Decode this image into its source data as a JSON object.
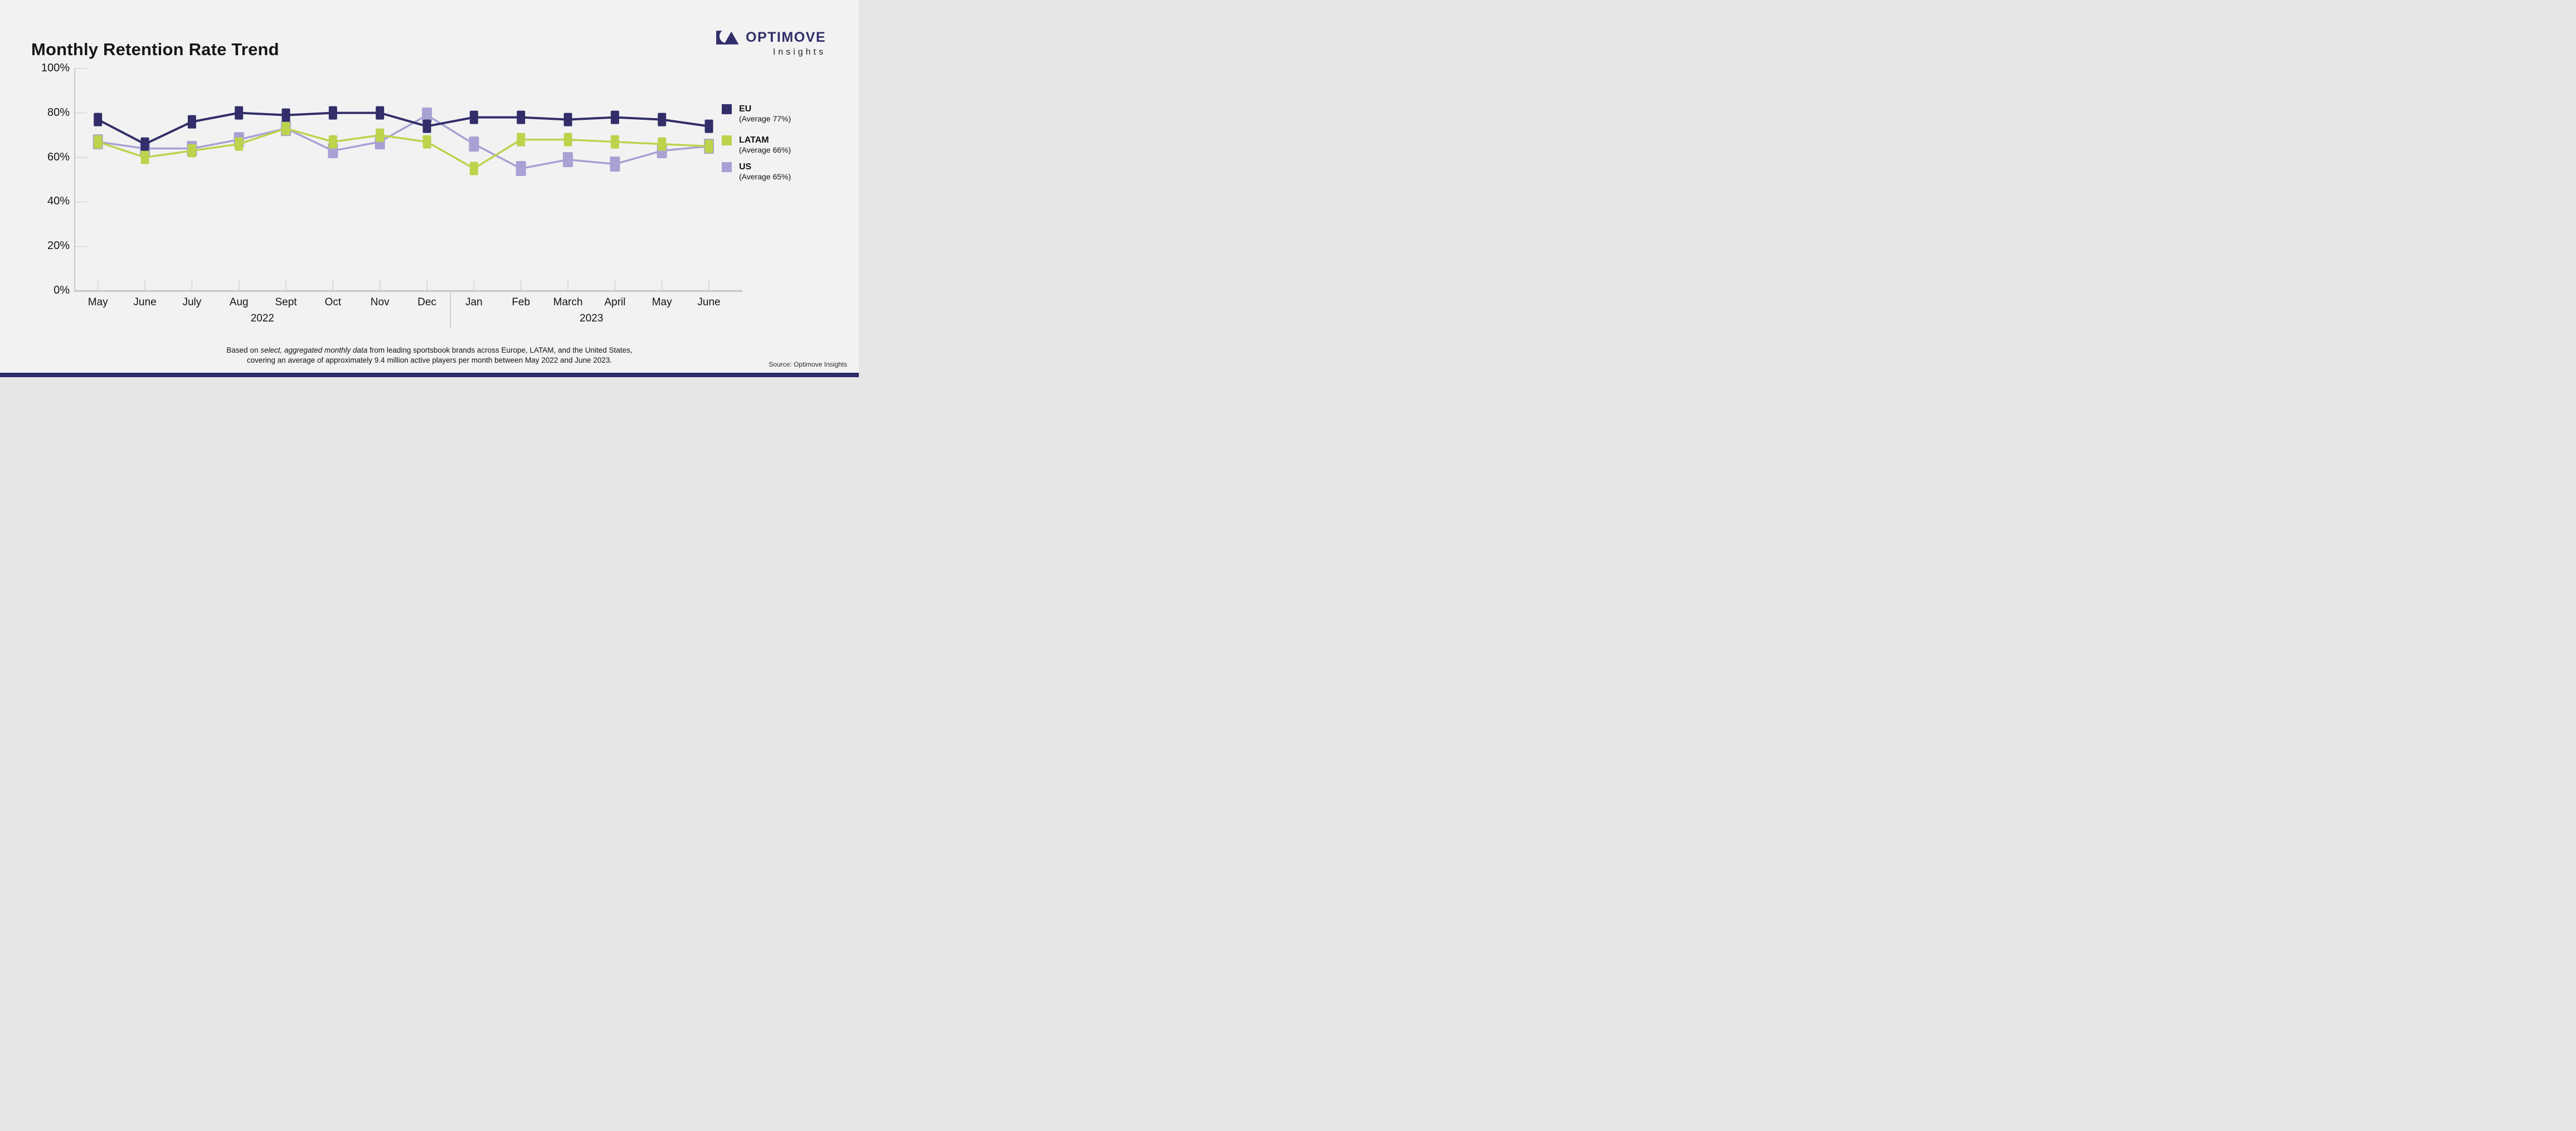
{
  "page": {
    "background": "#f2f2f2",
    "accent_bar_color": "#2e2b68"
  },
  "brand": {
    "name": "OPTIMOVE",
    "subtitle": "Insights",
    "logo_color": "#312e6a"
  },
  "chart_data": {
    "type": "line",
    "title": "Monthly Retention Rate Trend",
    "categories": [
      "May",
      "June",
      "July",
      "Aug",
      "Sept",
      "Oct",
      "Nov",
      "Dec",
      "Jan",
      "Feb",
      "March",
      "April",
      "May",
      "June"
    ],
    "year_groups": [
      {
        "label": "2022",
        "from": 0,
        "to": 7
      },
      {
        "label": "2023",
        "from": 8,
        "to": 13
      }
    ],
    "ylim": [
      0,
      100
    ],
    "ytick_values": [
      100,
      80,
      60,
      40,
      20,
      0
    ],
    "ytick_labels": [
      "100%",
      "80%",
      "60%",
      "40%",
      "20%",
      "0%"
    ],
    "grid": "inner ticks only, no full gridlines",
    "legend_position": "right",
    "axis_color": "#c6c6c6",
    "tick_color": "#d4d4d4",
    "series": [
      {
        "name": "US",
        "legend_label": "US",
        "legend_sub": "(Average 65%)",
        "color": "#a7a1d4",
        "values": [
          67,
          64,
          64,
          68,
          73,
          63,
          67,
          79,
          66,
          55,
          59,
          57,
          63,
          65
        ]
      },
      {
        "name": "LATAM",
        "legend_label": "LATAM",
        "legend_sub": "(Average 66%)",
        "color": "#bcd34c",
        "values": [
          67,
          60,
          63,
          66,
          73,
          67,
          70,
          67,
          55,
          68,
          68,
          67,
          66,
          65
        ]
      },
      {
        "name": "EU",
        "legend_label": "EU",
        "legend_sub": "(Average 77%)",
        "color": "#312e6a",
        "values": [
          77,
          66,
          76,
          80,
          79,
          80,
          80,
          74,
          78,
          78,
          77,
          78,
          77,
          74
        ]
      }
    ],
    "legend_order": [
      "EU",
      "LATAM",
      "US"
    ]
  },
  "footer": {
    "line1_pre": "Based on ",
    "line1_italic": "select, aggregated monthly data",
    "line1_post": " from leading sportsbook brands across Europe, LATAM, and the United States,",
    "line2": "covering an average of approximately 9.4 million active players per month between May 2022 and June 2023.",
    "source": "Source: Optimove Insights"
  }
}
